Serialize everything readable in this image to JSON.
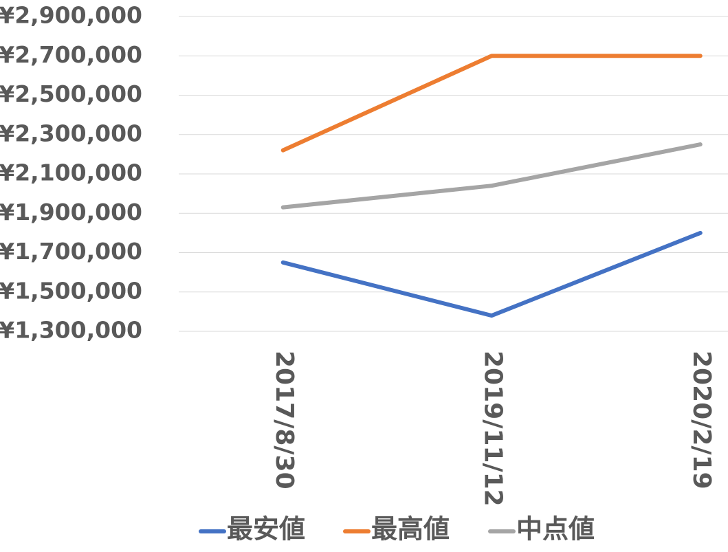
{
  "chart_data": {
    "type": "line",
    "categories": [
      "2017/8/30",
      "2019/11/12",
      "2020/2/19"
    ],
    "series": [
      {
        "name": "最安値",
        "color": "#4472c4",
        "values": [
          1650000,
          1380000,
          1800000
        ]
      },
      {
        "name": "最高値",
        "color": "#ed7d31",
        "values": [
          2220000,
          2700000,
          2700000
        ]
      },
      {
        "name": "中点値",
        "color": "#a5a5a5",
        "values": [
          1930000,
          2040000,
          2250000
        ]
      }
    ],
    "ylim": [
      1300000,
      2900000
    ],
    "yticks": [
      {
        "value": 1300000,
        "label": "¥1,300,000"
      },
      {
        "value": 1500000,
        "label": "¥1,500,000"
      },
      {
        "value": 1700000,
        "label": "¥1,700,000"
      },
      {
        "value": 1900000,
        "label": "¥1,900,000"
      },
      {
        "value": 2100000,
        "label": "¥2,100,000"
      },
      {
        "value": 2300000,
        "label": "¥2,300,000"
      },
      {
        "value": 2500000,
        "label": "¥2,500,000"
      },
      {
        "value": 2700000,
        "label": "¥2,700,000"
      },
      {
        "value": 2900000,
        "label": "¥2,900,000"
      }
    ],
    "grid": true,
    "legend": "bottom"
  }
}
